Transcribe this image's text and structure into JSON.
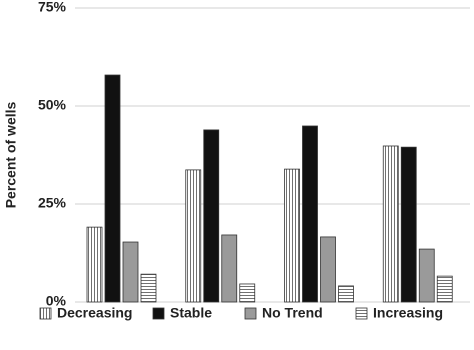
{
  "chart_data": {
    "type": "bar",
    "y_label": "Percent of wells",
    "categories": [
      null,
      null,
      null,
      null
    ],
    "series": [
      {
        "name": "Decreasing",
        "color": "#ffffff",
        "hatch": "vertical",
        "values": [
          19.1,
          33.7,
          33.9,
          39.8
        ]
      },
      {
        "name": "Stable",
        "color": "#111111",
        "values": [
          57.9,
          43.9,
          44.9,
          39.5
        ]
      },
      {
        "name": "No Trend",
        "color": "#9a9a9a",
        "values": [
          15.3,
          17.1,
          16.6,
          13.5
        ]
      },
      {
        "name": "Increasing",
        "color": "#ffffff",
        "hatch": "horizontal",
        "values": [
          7.1,
          4.6,
          4.1,
          6.6
        ]
      }
    ],
    "ylim": [
      0,
      75
    ],
    "yticks": [
      {
        "value": 0,
        "label": "0%"
      },
      {
        "value": 25,
        "label": "25%"
      },
      {
        "value": 50,
        "label": "50%"
      },
      {
        "value": 75,
        "label": "75%"
      }
    ],
    "grid": true,
    "legend": "bottom"
  }
}
